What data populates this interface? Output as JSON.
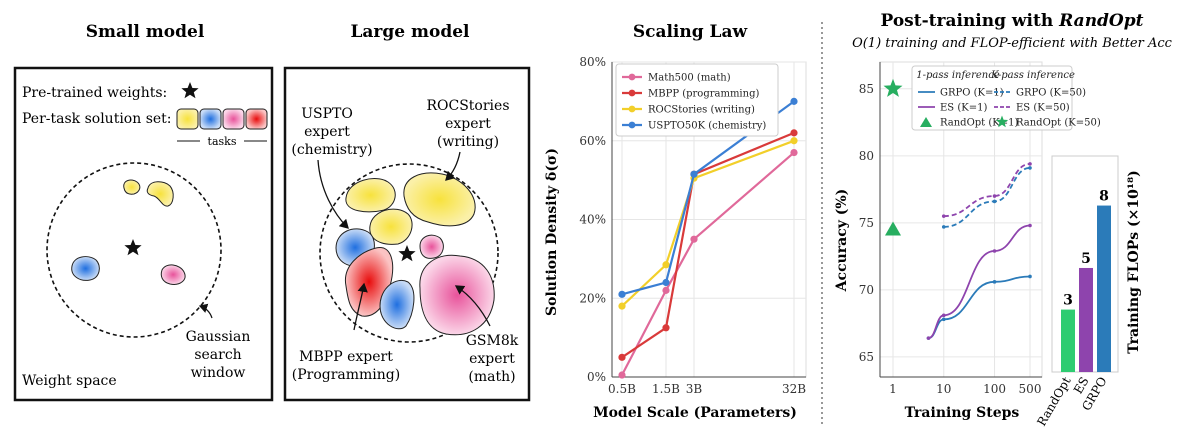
{
  "panel_small": {
    "title": "Small model",
    "legend_weights": "Pre-trained weights:",
    "legend_solutions": "Per-task solution set:",
    "legend_tasks": "tasks",
    "search_label_1": "Gaussian",
    "search_label_2": "search",
    "search_label_3": "window",
    "space_label": "Weight space"
  },
  "panel_large": {
    "title": "Large model",
    "uspto_1": "USPTO",
    "uspto_2": "expert",
    "uspto_3": "(chemistry)",
    "roc_1": "ROCStories",
    "roc_2": "expert",
    "roc_3": "(writing)",
    "mbpp_1": "MBPP expert",
    "mbpp_2": "(Programming)",
    "gsm_1": "GSM8k",
    "gsm_2": "expert",
    "gsm_3": "(math)"
  },
  "chart_data": [
    {
      "type": "line",
      "title": "Scaling Law",
      "xlabel": "Model Scale (Parameters)",
      "ylabel": "Solution Density δ(σ)",
      "x_tick_labels": [
        "0.5B",
        "1.5B",
        "3B",
        "32B"
      ],
      "y_tick_labels": [
        "0%",
        "20%",
        "40%",
        "60%",
        "80%"
      ],
      "ylim": [
        0,
        80
      ],
      "grid": true,
      "legend_position": "top-left",
      "series": [
        {
          "name": "Math500 (math)",
          "color": "#e0699a",
          "values": [
            0.5,
            22,
            35,
            57
          ]
        },
        {
          "name": "MBPP (programming)",
          "color": "#d93a3a",
          "values": [
            5,
            12.5,
            51.5,
            62
          ]
        },
        {
          "name": "ROCStories (writing)",
          "color": "#f2cf2a",
          "values": [
            18,
            28.5,
            50.5,
            60
          ]
        },
        {
          "name": "USPTO50K (chemistry)",
          "color": "#3b7fd4",
          "values": [
            21,
            24,
            51.5,
            70
          ]
        }
      ]
    },
    {
      "type": "line",
      "title": "Post-training with RandOpt",
      "title_prefix": "Post-training with ",
      "title_emph": "RandOpt",
      "subtitle": "O(1) training and FLOP-efficient with Better Acc",
      "xlabel": "Training Steps",
      "ylabel": "Accuracy (%)",
      "x_tick_labels": [
        "1",
        "10",
        "100",
        "500"
      ],
      "y_tick_labels": [
        "65",
        "70",
        "75",
        "80",
        "85"
      ],
      "ylim": [
        63.5,
        87
      ],
      "grid": true,
      "legend_position": "top",
      "legend_heading_1": "1-pass inference",
      "legend_heading_k": "K-pass inference",
      "series": [
        {
          "name": "GRPO (K=1)",
          "color": "#2b7bb9",
          "dash": false,
          "x": [
            5,
            10,
            100,
            500
          ],
          "values": [
            66.4,
            67.8,
            70.6,
            71.0
          ]
        },
        {
          "name": "ES (K=1)",
          "color": "#8e44ad",
          "dash": false,
          "x": [
            5,
            10,
            100,
            500
          ],
          "values": [
            66.4,
            68.1,
            72.9,
            74.8
          ]
        },
        {
          "name": "GRPO (K=50)",
          "color": "#2b7bb9",
          "dash": true,
          "x": [
            10,
            100,
            500
          ],
          "values": [
            74.7,
            76.6,
            79.1
          ]
        },
        {
          "name": "ES (K=50)",
          "color": "#8e44ad",
          "dash": true,
          "x": [
            10,
            100,
            500
          ],
          "values": [
            75.5,
            77.0,
            79.4
          ]
        }
      ],
      "markers": [
        {
          "name": "RandOpt (K=1)",
          "shape": "triangle",
          "color": "#27ae60",
          "x": 1,
          "y": 74.5
        },
        {
          "name": "RandOpt (K=50)",
          "shape": "star",
          "color": "#27ae60",
          "x": 1,
          "y": 85.0
        }
      ]
    },
    {
      "type": "bar",
      "ylabel": "Training FLOPs (×10¹⁸)",
      "categories": [
        "RandOpt",
        "ES",
        "GRPO"
      ],
      "values": [
        3,
        5,
        8
      ],
      "colors": [
        "#2ecc71",
        "#8e44ad",
        "#2b7bb9"
      ]
    }
  ]
}
